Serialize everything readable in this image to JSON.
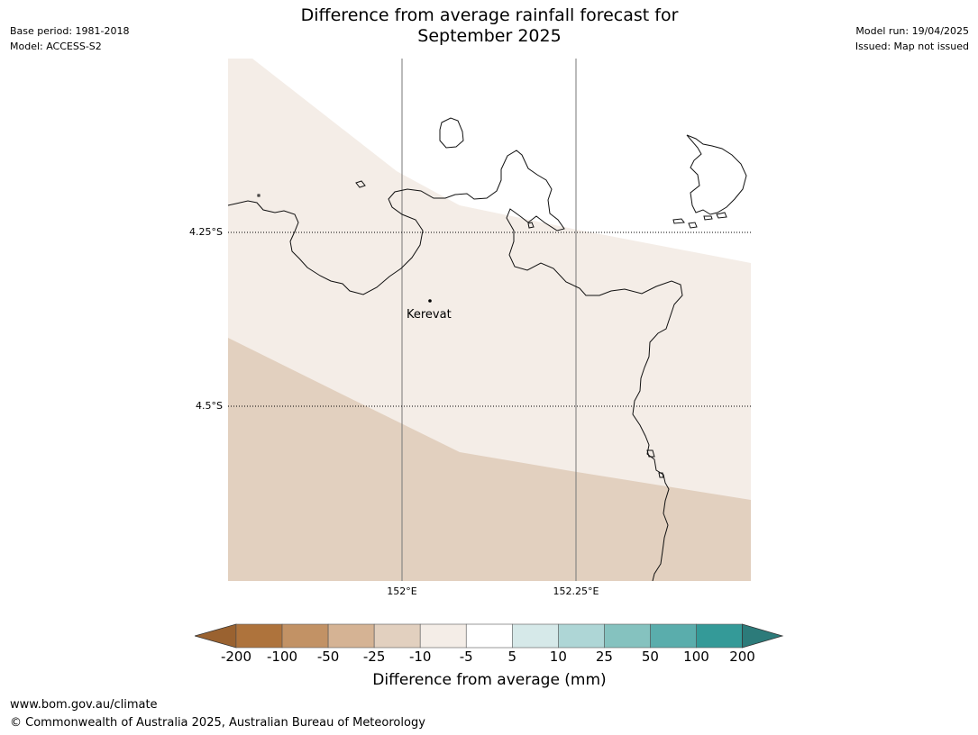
{
  "header": {
    "title_line1": "Difference from average rainfall forecast for",
    "title_line2": "September 2025",
    "base_period": "Base period: 1981-2018",
    "model": "Model: ACCESS-S2",
    "model_run": "Model run: 19/04/2025",
    "issued": "Issued: Map not issued"
  },
  "map": {
    "gridlines": {
      "latitudes": [
        "4.25°S",
        "4.5°S"
      ],
      "longitudes": [
        "152°E",
        "152.25°E"
      ]
    },
    "places": [
      {
        "name": "Kerevat"
      }
    ],
    "shaded_categories": [
      {
        "range": "-10 to -5",
        "color": "#f4ede7"
      },
      {
        "range": "-25 to -10",
        "color": "#e2d0bf"
      }
    ]
  },
  "legend": {
    "title": "Difference from average (mm)",
    "ticks": [
      "-200",
      "-100",
      "-50",
      "-25",
      "-10",
      "-5",
      "5",
      "10",
      "25",
      "50",
      "100",
      "200"
    ],
    "colors": [
      "#9a6230",
      "#ae733c",
      "#c29265",
      "#d5b394",
      "#e2d0bf",
      "#f4ede7",
      "#ffffff",
      "#d6e9e9",
      "#aed6d6",
      "#85c2bf",
      "#5aadac",
      "#349a98",
      "#2c7b7a"
    ]
  },
  "footer": {
    "url": "www.bom.gov.au/climate",
    "copyright": "© Commonwealth of Australia 2025, Australian Bureau of Meteorology"
  }
}
